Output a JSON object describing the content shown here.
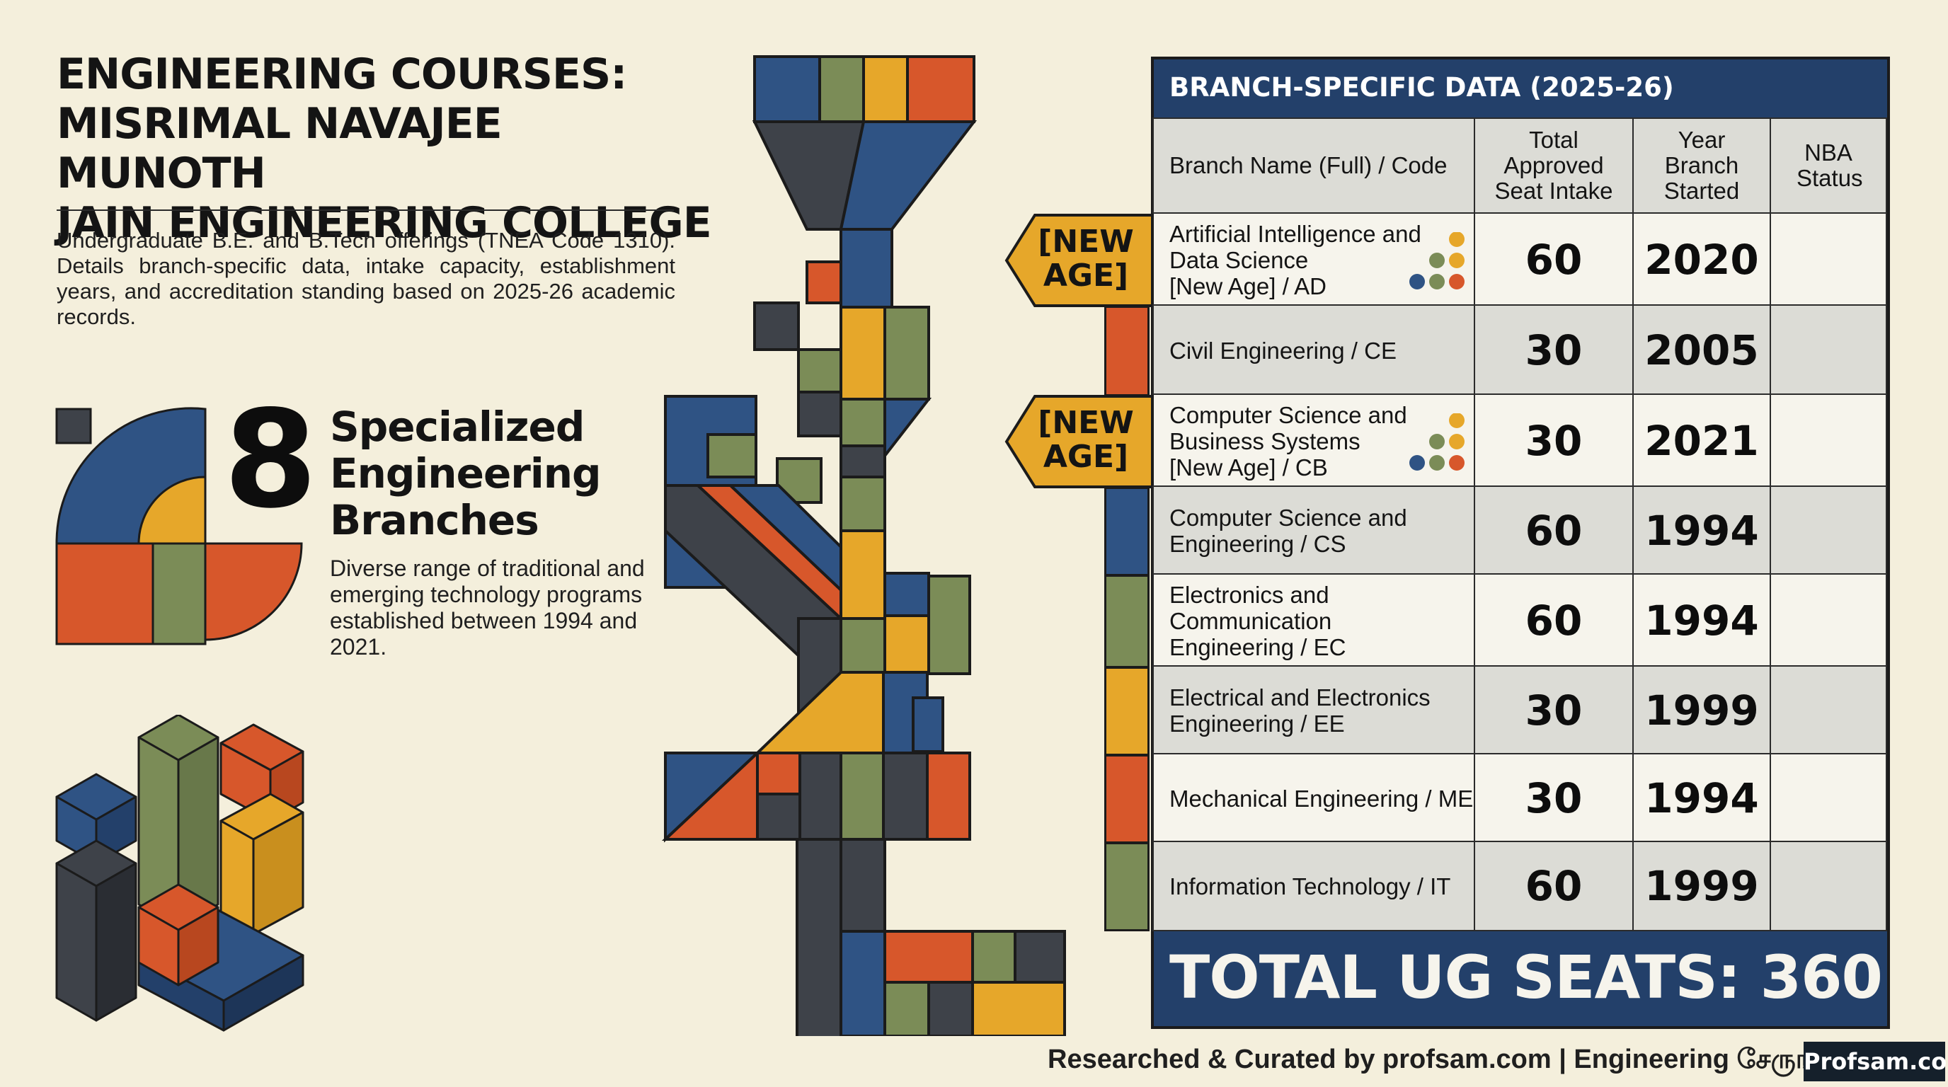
{
  "title_lines": [
    "ENGINEERING COURSES:",
    "MISRIMAL NAVAJEE MUNOTH",
    "JAIN ENGINEERING COLLEGE"
  ],
  "intro": "Undergraduate B.E. and B.Tech offerings (TNEA Code 1310). Details branch-specific data, intake capacity, establishment years, and accreditation standing based on 2025-26 academic records.",
  "highlight": {
    "number": "8",
    "title_lines": [
      "Specialized",
      "Engineering",
      "Branches"
    ],
    "description": "Diverse range of traditional and emerging technology programs established between 1994 and 2021."
  },
  "table": {
    "header": "BRANCH-SPECIFIC DATA (2025-26)",
    "columns": [
      "Branch Name (Full) / Code",
      "Total Approved Seat Intake",
      "Year Branch Started",
      "NBA Status"
    ],
    "badge_label": "[NEW AGE]",
    "rows": [
      {
        "name_lines": [
          "Artificial Intelligence and",
          "Data Science",
          "[New Age] / AD"
        ],
        "intake": "60",
        "year": "2020",
        "nba": "",
        "new_age": true,
        "tab_color": "#e6a72a"
      },
      {
        "name_lines": [
          "Civil Engineering / CE"
        ],
        "intake": "30",
        "year": "2005",
        "nba": "",
        "new_age": false,
        "tab_color": "#d7572b"
      },
      {
        "name_lines": [
          "Computer Science and",
          "Business Systems",
          "[New Age] / CB"
        ],
        "intake": "30",
        "year": "2021",
        "nba": "",
        "new_age": true,
        "tab_color": "#e6a72a"
      },
      {
        "name_lines": [
          "Computer Science and",
          "Engineering / CS"
        ],
        "intake": "60",
        "year": "1994",
        "nba": "",
        "new_age": false,
        "tab_color": "#2f5384"
      },
      {
        "name_lines": [
          "Electronics and",
          "Communication",
          "Engineering / EC"
        ],
        "intake": "60",
        "year": "1994",
        "nba": "",
        "new_age": false,
        "tab_color": "#7b8c57"
      },
      {
        "name_lines": [
          "Electrical and Electronics",
          "Engineering / EE"
        ],
        "intake": "30",
        "year": "1999",
        "nba": "",
        "new_age": false,
        "tab_color": "#e6a72a"
      },
      {
        "name_lines": [
          "Mechanical Engineering / ME"
        ],
        "intake": "30",
        "year": "1994",
        "nba": "",
        "new_age": false,
        "tab_color": "#d7572b"
      },
      {
        "name_lines": [
          "Information Technology / IT"
        ],
        "intake": "60",
        "year": "1999",
        "nba": "",
        "new_age": false,
        "tab_color": "#7b8c57"
      }
    ],
    "total": "TOTAL UG SEATS: 360"
  },
  "footer": "Researched & Curated by profsam.com | Engineering சேருங்க Sa",
  "logo": "Profsam.com",
  "colors": {
    "navy": "#2f5384",
    "mustard": "#e6a72a",
    "orange": "#d7572b",
    "olive": "#7b8c57",
    "charcoal": "#3e4249",
    "background": "#f4efdc",
    "table_header": "#23406a"
  },
  "icons": [
    "abstract-geometric-art",
    "isometric-blocks-art",
    "colored-dots-icon"
  ]
}
